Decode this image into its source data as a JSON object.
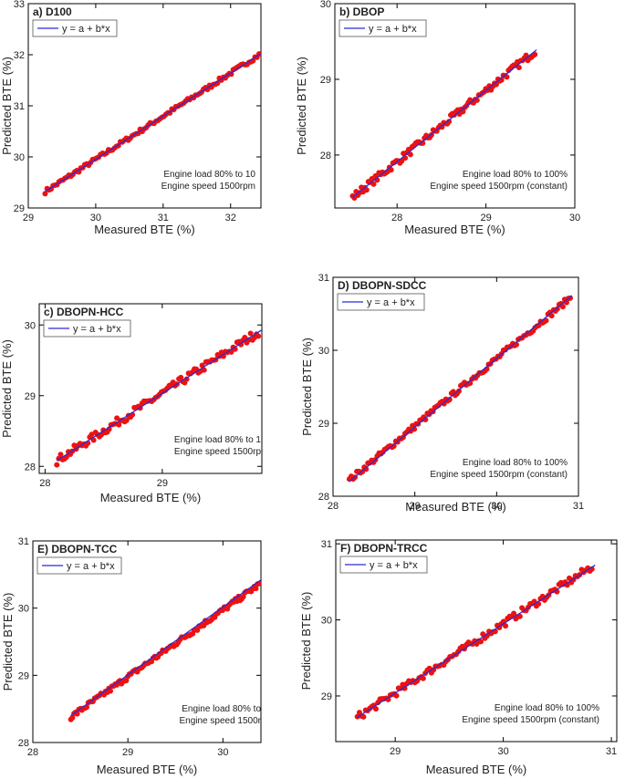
{
  "chart_data": [
    {
      "type": "scatter",
      "panel_label": "a) D100",
      "xlabel": "Measured BTE (%)",
      "ylabel": "Predicted BTE (%)",
      "xlim": [
        29,
        32.45
      ],
      "ylim": [
        29,
        33
      ],
      "xticks": [
        29,
        30,
        31,
        32
      ],
      "yticks": [
        29,
        30,
        31,
        32,
        33
      ],
      "legend": "y = a + b*x",
      "annotation": [
        "Engine load 80% to 10",
        "Engine speed 1500rpm"
      ],
      "fit_line": {
        "x": [
          29.25,
          32.45
        ],
        "y": [
          29.32,
          32.02
        ]
      },
      "series": [
        {
          "name": "data",
          "x_range": [
            29.25,
            32.45
          ],
          "n_points": 110,
          "fit_start": 29.32,
          "fit_end": 32.02,
          "noise": 0.04
        }
      ]
    },
    {
      "type": "scatter",
      "panel_label": "b) DBOP",
      "xlabel": "Measured BTE (%)",
      "ylabel": "Predicted BTE (%)",
      "xlim": [
        27.3,
        30
      ],
      "ylim": [
        27.3,
        30
      ],
      "xticks": [
        28,
        29,
        30
      ],
      "yticks": [
        28,
        29,
        30
      ],
      "legend": "y = a + b*x",
      "annotation": [
        "Engine load 80% to 100%",
        "Engine speed 1500rpm (constant)"
      ],
      "fit_line": {
        "x": [
          27.5,
          29.57
        ],
        "y": [
          27.44,
          29.39
        ]
      },
      "series": [
        {
          "name": "data",
          "x_range": [
            27.5,
            29.55
          ],
          "n_points": 105,
          "fit_start": 27.44,
          "fit_end": 29.37,
          "noise": 0.05
        }
      ]
    },
    {
      "type": "scatter",
      "panel_label": "c) DBOPN-HCC",
      "xlabel": "Measured BTE (%)",
      "ylabel": "Predicted BTE (%)",
      "xlim": [
        27.95,
        29.85
      ],
      "ylim": [
        27.9,
        30.3
      ],
      "xticks": [
        28,
        29
      ],
      "yticks": [
        28,
        29,
        30
      ],
      "legend": "y = a + b*x",
      "annotation": [
        "Engine load 80% to 1",
        "Engine speed 1500rp"
      ],
      "fit_line": {
        "x": [
          28.1,
          29.85
        ],
        "y": [
          28.08,
          29.93
        ]
      },
      "series": [
        {
          "name": "data",
          "x_range": [
            28.1,
            29.82
          ],
          "n_points": 105,
          "fit_start": 28.08,
          "fit_end": 29.9,
          "noise": 0.06
        }
      ]
    },
    {
      "type": "scatter",
      "panel_label": "D) DBOPN-SDCC",
      "xlabel": "Measured BTE (%)",
      "ylabel": "Predicted BTE (%)",
      "xlim": [
        28,
        31
      ],
      "ylim": [
        28,
        31
      ],
      "xticks": [
        28,
        29,
        30,
        31
      ],
      "yticks": [
        28,
        29,
        30,
        31
      ],
      "legend": "y = a + b*x",
      "annotation": [
        "Engine load 80% to 100%",
        "Engine speed 1500rpm (constant)"
      ],
      "fit_line": {
        "x": [
          28.2,
          30.92
        ],
        "y": [
          28.2,
          30.75
        ]
      },
      "series": [
        {
          "name": "data",
          "x_range": [
            28.2,
            30.9
          ],
          "n_points": 120,
          "fit_start": 28.22,
          "fit_end": 30.72,
          "noise": 0.04
        }
      ]
    },
    {
      "type": "scatter",
      "panel_label": "E) DBOPN-TCC",
      "xlabel": "Measured BTE (%)",
      "ylabel": "Predicted BTE (%)",
      "xlim": [
        28,
        30.4
      ],
      "ylim": [
        28,
        31
      ],
      "xticks": [
        28,
        29,
        30
      ],
      "yticks": [
        28,
        29,
        30,
        31
      ],
      "legend": "y = a + b*x",
      "annotation": [
        "Engine load 80% to",
        "Engine speed 1500r"
      ],
      "fit_line": {
        "x": [
          28.4,
          30.4
        ],
        "y": [
          28.4,
          30.42
        ]
      },
      "series": [
        {
          "name": "data",
          "x_range": [
            28.4,
            30.38
          ],
          "n_points": 120,
          "fit_start": 28.38,
          "fit_end": 30.35,
          "noise": 0.04
        }
      ]
    },
    {
      "type": "scatter",
      "panel_label": "F) DBOPN-TRCC",
      "xlabel": "Measured BTE (%)",
      "ylabel": "Predicted BTE (%)",
      "xlim": [
        28.45,
        31.05
      ],
      "ylim": [
        28.4,
        31.05
      ],
      "xticks": [
        29,
        30,
        31
      ],
      "yticks": [
        29,
        30,
        31
      ],
      "legend": "y = a + b*x",
      "annotation": [
        "Engine load 80% to 100%",
        "Engine speed 1500rpm (constant)"
      ],
      "fit_line": {
        "x": [
          28.65,
          30.85
        ],
        "y": [
          28.72,
          30.72
        ]
      },
      "series": [
        {
          "name": "data",
          "x_range": [
            28.65,
            30.82
          ],
          "n_points": 115,
          "fit_start": 28.72,
          "fit_end": 30.7,
          "noise": 0.05
        }
      ]
    }
  ],
  "colors": {
    "points": "#ee1111",
    "fit": "#2b2bd6",
    "axis": "#000000",
    "text": "#222222"
  }
}
